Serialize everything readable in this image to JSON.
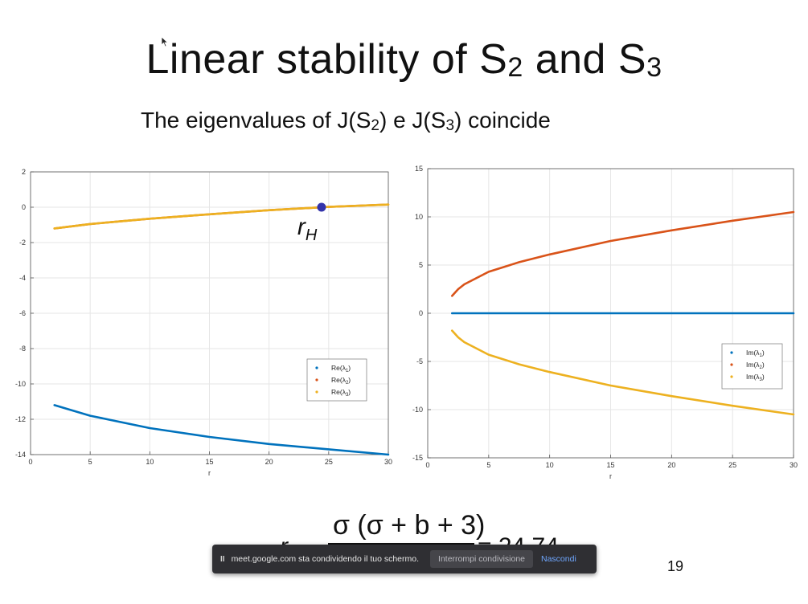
{
  "slide": {
    "title_main": "Linear stability of S",
    "title_sub1": "2",
    "title_and": " and S",
    "title_sub2": "3",
    "subtitle_a": "The eigenvalues of J(S",
    "subtitle_sub1": "2",
    "subtitle_b": ") e J(S",
    "subtitle_sub2": "3",
    "subtitle_c": ") coincide",
    "page_number": "19"
  },
  "formula": {
    "numerator": "σ (σ + b + 3)",
    "result": "= 24.74"
  },
  "share_bar": {
    "pause_label": "II",
    "message": "meet.google.com sta condividendo il tuo schermo.",
    "stop_label": "Interrompi condivisione",
    "hide_label": "Nascondi"
  },
  "colors": {
    "lambda1": "#0072BD",
    "lambda2": "#D95319",
    "lambda3": "#EDB120",
    "marker": "#3333aa"
  },
  "chart_data": [
    {
      "type": "line",
      "xlabel": "r",
      "ylabel": "",
      "xlim": [
        0,
        30
      ],
      "ylim": [
        -14,
        2
      ],
      "xticks": [
        0,
        5,
        10,
        15,
        20,
        25,
        30
      ],
      "yticks": [
        2,
        0,
        -2,
        -4,
        -6,
        -8,
        -10,
        -12,
        -14
      ],
      "grid": true,
      "legend_position": "lower-right",
      "annotation": {
        "label": "r",
        "sub": "H",
        "x": 24.4,
        "y": 0
      },
      "series": [
        {
          "name": "Re(λ1)",
          "legend_sub": "1",
          "x": [
            2,
            5,
            10,
            15,
            20,
            25,
            30
          ],
          "y": [
            -11.2,
            -11.8,
            -12.5,
            -13.0,
            -13.4,
            -13.7,
            -14.0
          ]
        },
        {
          "name": "Re(λ2)",
          "legend_sub": "2",
          "x": [
            2,
            5,
            10,
            15,
            20,
            25,
            30
          ],
          "y": [
            -1.2,
            -0.95,
            -0.65,
            -0.4,
            -0.17,
            0.02,
            0.15
          ]
        },
        {
          "name": "Re(λ3)",
          "legend_sub": "3",
          "x": [
            2,
            5,
            10,
            15,
            20,
            25,
            30
          ],
          "y": [
            -1.2,
            -0.95,
            -0.65,
            -0.4,
            -0.17,
            0.02,
            0.15
          ]
        }
      ]
    },
    {
      "type": "line",
      "xlabel": "r",
      "ylabel": "",
      "xlim": [
        0,
        30
      ],
      "ylim": [
        -15,
        15
      ],
      "xticks": [
        0,
        5,
        10,
        15,
        20,
        25,
        30
      ],
      "yticks": [
        15,
        10,
        5,
        0,
        -5,
        -10,
        -15
      ],
      "grid": true,
      "legend_position": "right",
      "series": [
        {
          "name": "Im(λ1)",
          "legend_sub": "1",
          "x": [
            2,
            30
          ],
          "y": [
            0,
            0
          ]
        },
        {
          "name": "Im(λ2)",
          "legend_sub": "2",
          "x": [
            2,
            2.5,
            3,
            5,
            7.5,
            10,
            15,
            20,
            25,
            30
          ],
          "y": [
            1.8,
            2.5,
            3.0,
            4.3,
            5.3,
            6.1,
            7.5,
            8.6,
            9.6,
            10.5
          ]
        },
        {
          "name": "Im(λ3)",
          "legend_sub": "3",
          "x": [
            2,
            2.5,
            3,
            5,
            7.5,
            10,
            15,
            20,
            25,
            30
          ],
          "y": [
            -1.8,
            -2.5,
            -3.0,
            -4.3,
            -5.3,
            -6.1,
            -7.5,
            -8.6,
            -9.6,
            -10.5
          ]
        }
      ]
    }
  ]
}
